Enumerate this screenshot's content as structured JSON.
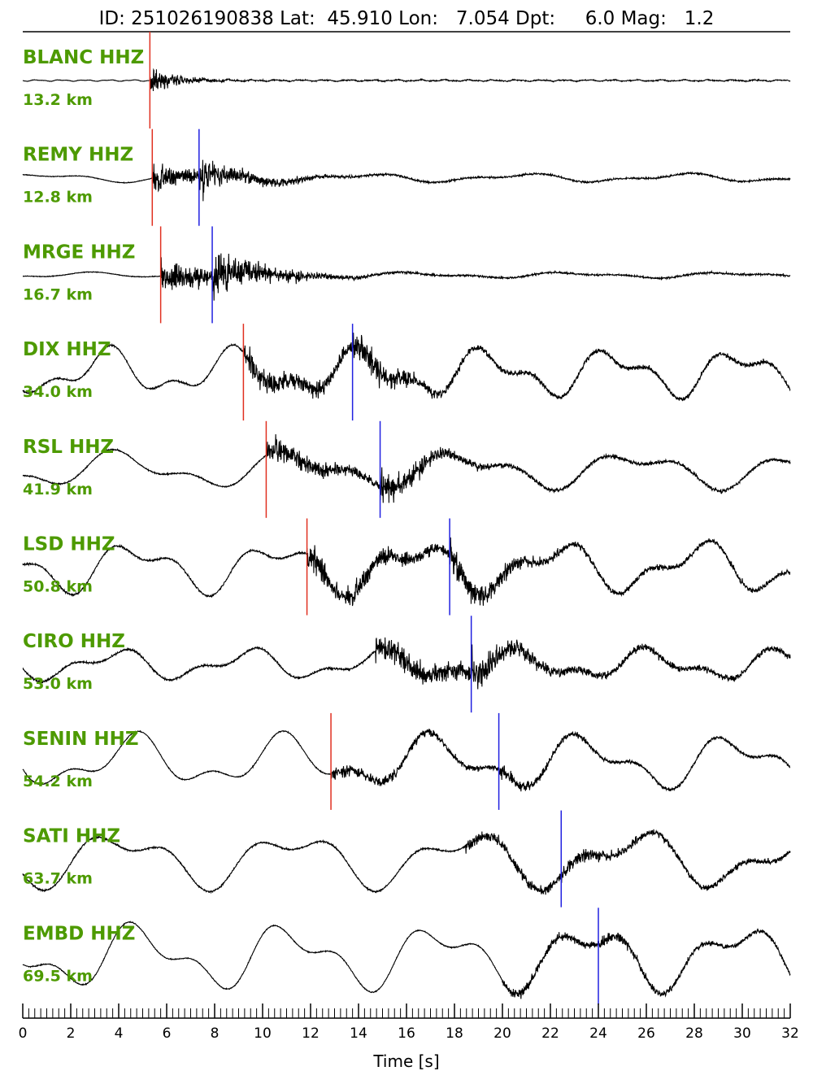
{
  "header": {
    "title": "ID: 251026190838 Lat:  45.910 Lon:   7.054 Dpt:     6.0 Mag:   1.2"
  },
  "chart_data": {
    "type": "line",
    "xlabel": "Time [s]",
    "xlim": [
      0,
      32
    ],
    "x_ticks": [
      "0",
      "2",
      "4",
      "6",
      "8",
      "10",
      "12",
      "14",
      "16",
      "18",
      "20",
      "22",
      "24",
      "26",
      "28",
      "30",
      "32"
    ],
    "minor_tick_step": 0.25,
    "grid": false,
    "colors": {
      "trace": "#000000",
      "p_pick": "#e03020",
      "s_pick": "#2020e0",
      "label": "#4d9a00"
    },
    "traces": [
      {
        "station": "BLANC HHZ",
        "distance": "13.2 km",
        "p_time": 5.3,
        "s_time": null
      },
      {
        "station": "REMY HHZ",
        "distance": "12.8 km",
        "p_time": 5.4,
        "s_time": 7.35
      },
      {
        "station": "MRGE HHZ",
        "distance": "16.7 km",
        "p_time": 5.75,
        "s_time": 7.9
      },
      {
        "station": "DIX HHZ",
        "distance": "34.0 km",
        "p_time": 9.2,
        "s_time": 13.75
      },
      {
        "station": "RSL HHZ",
        "distance": "41.9 km",
        "p_time": 10.15,
        "s_time": 14.9
      },
      {
        "station": "LSD HHZ",
        "distance": "50.8 km",
        "p_time": 11.85,
        "s_time": 17.8
      },
      {
        "station": "CIRO HHZ",
        "distance": "53.0 km",
        "p_time": null,
        "s_time": 18.7
      },
      {
        "station": "SENIN HHZ",
        "distance": "54.2 km",
        "p_time": 12.85,
        "s_time": 19.85
      },
      {
        "station": "SATI HHZ",
        "distance": "63.7 km",
        "p_time": null,
        "s_time": 22.45
      },
      {
        "station": "EMBD HHZ",
        "distance": "69.5 km",
        "p_time": null,
        "s_time": 24.0
      }
    ]
  }
}
